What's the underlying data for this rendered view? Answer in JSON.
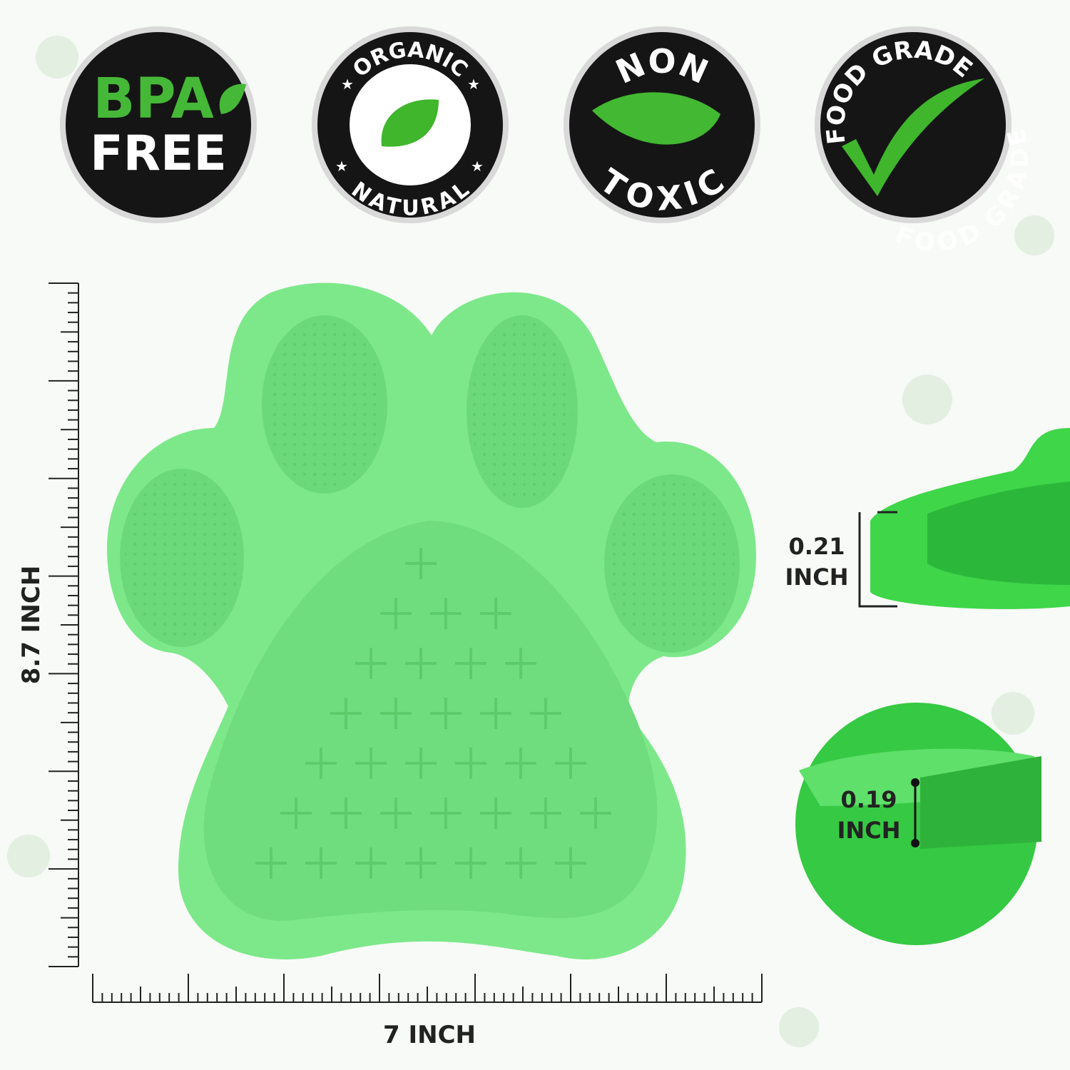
{
  "badges": [
    {
      "line1": "BPA",
      "line2": "FREE"
    },
    {
      "top": "ORGANIC",
      "bottom": "NATURAL"
    },
    {
      "top": "NON",
      "bottom": "TOXIC"
    },
    {
      "top": "FOOD GRADE",
      "side": "FOOD GRADE"
    }
  ],
  "measurements": {
    "height": "8.7 INCH",
    "width": "7 INCH",
    "thickness_value": "0.21",
    "thickness_unit": "INCH",
    "groove_value": "0.19",
    "groove_unit": "INCH"
  },
  "colors": {
    "mat_green": "#7de88a",
    "badge_black": "#151515",
    "accent_green": "#3fb62c"
  }
}
